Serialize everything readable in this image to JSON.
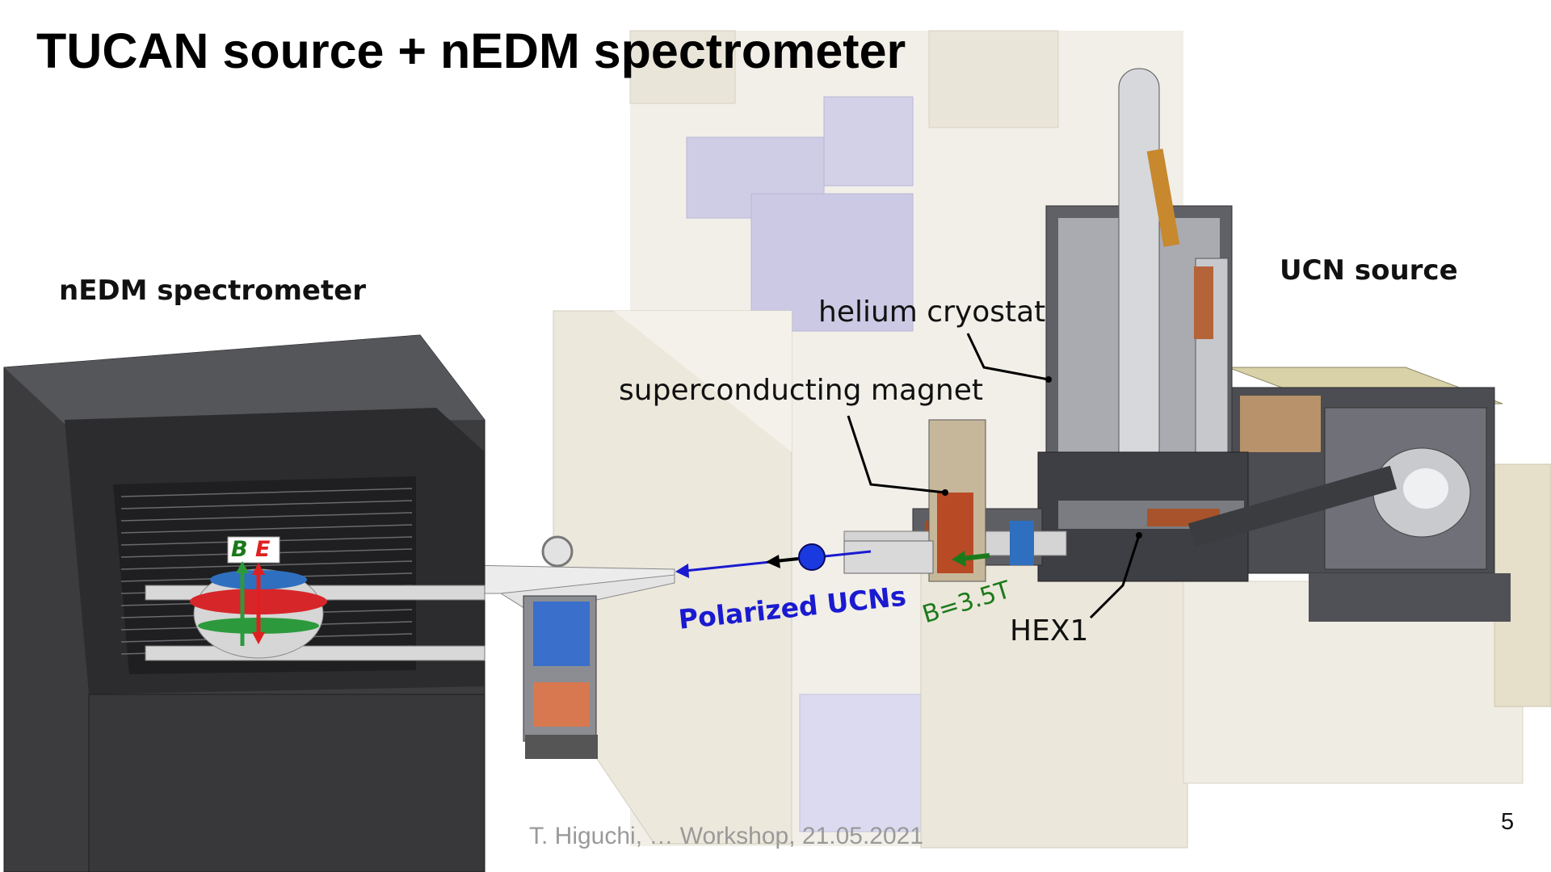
{
  "slide": {
    "title": "TUCAN source + nEDM spectrometer",
    "page_number": "5",
    "footer": "T. Higuchi, … Workshop, 21.05.2021"
  },
  "labels": {
    "nedm_spectrometer": "nEDM spectrometer",
    "ucn_source": "UCN source",
    "helium_cryostat": "helium cryostat",
    "superconducting_magnet": "superconducting magnet",
    "polarized_ucns": "Polarized UCNs",
    "magnetic_field": "B=3.5T",
    "hex1": "HEX1",
    "b_symbol": "B",
    "e_symbol": "E"
  },
  "colors": {
    "arrow_blue": "#1a1ad0",
    "field_green": "#1a7a1a",
    "e_field_red": "#e02020",
    "shield_dark": "#3a3a3c",
    "shielding_block": "#ece8dc",
    "lavender_block": "#cbc9e4"
  }
}
